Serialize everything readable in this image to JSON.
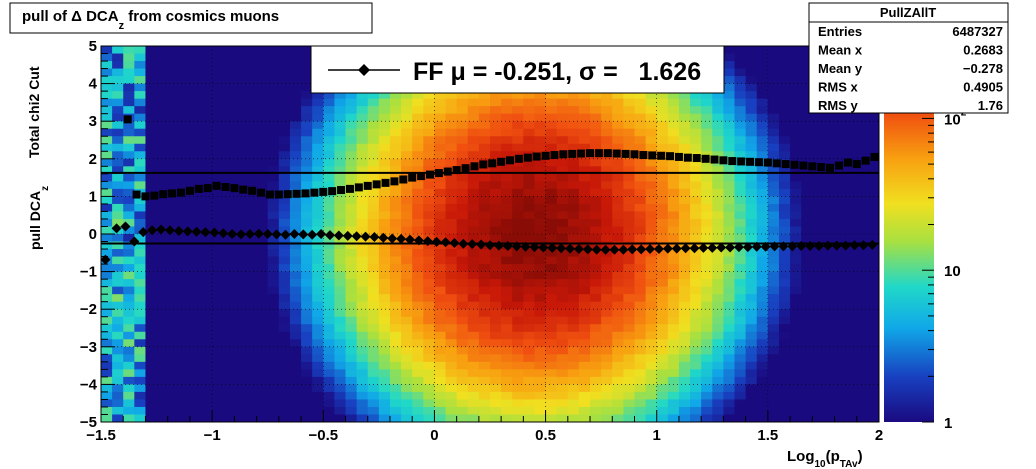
{
  "chart_data": {
    "type": "heatmap",
    "title": "pull of Δ DCA",
    "title_sub": "z",
    "title_tail": " from cosmics muons",
    "xlabel": "Log",
    "xlabel_sub1": "10",
    "xlabel_mid": "(p",
    "xlabel_sub2": "TAv",
    "xlabel_tail": ")",
    "ylabel_top": "Total chi2 Cut",
    "ylabel_bottom": "pull DCA",
    "ylabel_sub": "z",
    "xlim": [
      -1.5,
      2
    ],
    "ylim": [
      -5,
      5
    ],
    "x_ticks": [
      {
        "v": -1.5,
        "label": "−1.5"
      },
      {
        "v": -1,
        "label": "−1"
      },
      {
        "v": -0.5,
        "label": "−0.5"
      },
      {
        "v": 0,
        "label": "0"
      },
      {
        "v": 0.5,
        "label": "0.5"
      },
      {
        "v": 1,
        "label": "1"
      },
      {
        "v": 1.5,
        "label": "1.5"
      },
      {
        "v": 2,
        "label": "2"
      }
    ],
    "y_ticks": [
      {
        "v": 5,
        "label": "5"
      },
      {
        "v": 4,
        "label": "4"
      },
      {
        "v": 3,
        "label": "3"
      },
      {
        "v": 2,
        "label": "2"
      },
      {
        "v": 1,
        "label": "1"
      },
      {
        "v": 0,
        "label": "0"
      },
      {
        "v": -1,
        "label": "−1"
      },
      {
        "v": -2,
        "label": "−2"
      },
      {
        "v": -3,
        "label": "−3"
      },
      {
        "v": -4,
        "label": "−4"
      },
      {
        "v": -5,
        "label": "−5"
      }
    ],
    "grid": true,
    "z_scale": "log",
    "z_ticks": [
      {
        "v": 1,
        "label": "1",
        "exp": ""
      },
      {
        "v": 10,
        "label": "10",
        "exp": ""
      },
      {
        "v": 100,
        "label": "10",
        "exp": "2"
      }
    ],
    "z_range": [
      1,
      300
    ],
    "colors": {
      "low": "#1a0a80",
      "high": "#8a0c06"
    },
    "legend": {
      "label": "FF μ = -0.251, σ =   1.626",
      "position": "top-center"
    },
    "h_lines": [
      {
        "name": "mean",
        "y": -0.251
      },
      {
        "name": "sigma",
        "y": 1.626
      }
    ],
    "series": [
      {
        "marker": "diamond",
        "x": [
          -1.48,
          -1.43,
          -1.39,
          -1.35,
          -1.31,
          -1.27,
          -1.23,
          -1.19,
          -1.15,
          -1.11,
          -1.07,
          -1.03,
          -0.99,
          -0.95,
          -0.91,
          -0.87,
          -0.83,
          -0.79,
          -0.75,
          -0.71,
          -0.67,
          -0.63,
          -0.59,
          -0.55,
          -0.51,
          -0.47,
          -0.43,
          -0.39,
          -0.35,
          -0.31,
          -0.27,
          -0.23,
          -0.19,
          -0.15,
          -0.11,
          -0.07,
          -0.03,
          0.01,
          0.05,
          0.09,
          0.13,
          0.17,
          0.21,
          0.25,
          0.29,
          0.33,
          0.37,
          0.41,
          0.45,
          0.49,
          0.53,
          0.57,
          0.61,
          0.65,
          0.69,
          0.73,
          0.77,
          0.81,
          0.85,
          0.89,
          0.93,
          0.97,
          1.01,
          1.05,
          1.09,
          1.13,
          1.17,
          1.21,
          1.25,
          1.29,
          1.33,
          1.37,
          1.41,
          1.45,
          1.49,
          1.53,
          1.57,
          1.61,
          1.65,
          1.69,
          1.73,
          1.77,
          1.81,
          1.85,
          1.89,
          1.93,
          1.97
        ],
        "y": [
          -0.68,
          0.15,
          0.2,
          -0.2,
          0.05,
          0.1,
          0.12,
          0.1,
          0.08,
          0.07,
          0.06,
          0.05,
          0.04,
          0.02,
          0.0,
          -0.01,
          0.0,
          0.01,
          0.0,
          -0.01,
          -0.02,
          0.0,
          -0.01,
          -0.02,
          0.0,
          -0.03,
          -0.04,
          -0.05,
          -0.06,
          -0.07,
          -0.08,
          -0.1,
          -0.12,
          -0.13,
          -0.15,
          -0.17,
          -0.19,
          -0.21,
          -0.22,
          -0.24,
          -0.26,
          -0.27,
          -0.28,
          -0.3,
          -0.31,
          -0.32,
          -0.33,
          -0.34,
          -0.35,
          -0.36,
          -0.37,
          -0.38,
          -0.39,
          -0.4,
          -0.41,
          -0.42,
          -0.42,
          -0.42,
          -0.42,
          -0.41,
          -0.41,
          -0.4,
          -0.4,
          -0.39,
          -0.39,
          -0.38,
          -0.38,
          -0.37,
          -0.37,
          -0.36,
          -0.36,
          -0.35,
          -0.35,
          -0.34,
          -0.34,
          -0.33,
          -0.33,
          -0.33,
          -0.32,
          -0.32,
          -0.32,
          -0.31,
          -0.31,
          -0.31,
          -0.3,
          -0.3,
          -0.29
        ]
      },
      {
        "marker": "square",
        "x": [
          -1.38,
          -1.34,
          -1.3,
          -1.26,
          -1.22,
          -1.18,
          -1.14,
          -1.1,
          -1.06,
          -1.02,
          -0.98,
          -0.94,
          -0.9,
          -0.86,
          -0.82,
          -0.78,
          -0.74,
          -0.7,
          -0.66,
          -0.62,
          -0.58,
          -0.54,
          -0.5,
          -0.46,
          -0.42,
          -0.38,
          -0.34,
          -0.3,
          -0.26,
          -0.22,
          -0.18,
          -0.14,
          -0.1,
          -0.06,
          -0.02,
          0.02,
          0.06,
          0.1,
          0.14,
          0.18,
          0.22,
          0.26,
          0.3,
          0.34,
          0.38,
          0.42,
          0.46,
          0.5,
          0.54,
          0.58,
          0.62,
          0.66,
          0.7,
          0.74,
          0.78,
          0.82,
          0.86,
          0.9,
          0.94,
          0.98,
          1.02,
          1.06,
          1.1,
          1.14,
          1.18,
          1.22,
          1.26,
          1.3,
          1.34,
          1.38,
          1.42,
          1.46,
          1.5,
          1.54,
          1.58,
          1.62,
          1.66,
          1.7,
          1.74,
          1.78,
          1.82,
          1.86,
          1.9,
          1.94,
          1.98
        ],
        "y": [
          3.05,
          1.05,
          1.0,
          1.02,
          1.06,
          1.08,
          1.1,
          1.15,
          1.2,
          1.22,
          1.28,
          1.25,
          1.22,
          1.18,
          1.15,
          1.1,
          1.05,
          1.05,
          1.06,
          1.07,
          1.08,
          1.1,
          1.12,
          1.14,
          1.17,
          1.2,
          1.24,
          1.28,
          1.32,
          1.36,
          1.4,
          1.45,
          1.5,
          1.54,
          1.58,
          1.62,
          1.66,
          1.7,
          1.75,
          1.8,
          1.85,
          1.88,
          1.92,
          1.96,
          2.0,
          2.03,
          2.06,
          2.08,
          2.1,
          2.12,
          2.13,
          2.14,
          2.15,
          2.15,
          2.15,
          2.14,
          2.13,
          2.12,
          2.1,
          2.09,
          2.08,
          2.07,
          2.05,
          2.03,
          2.02,
          2.0,
          1.98,
          1.96,
          1.94,
          1.93,
          1.92,
          1.91,
          1.9,
          1.88,
          1.86,
          1.84,
          1.82,
          1.8,
          1.78,
          1.76,
          1.82,
          1.9,
          1.86,
          1.95,
          2.05
        ]
      }
    ]
  },
  "stats": {
    "title": "PullZAllT",
    "rows": [
      {
        "label": "Entries",
        "value": "6487327"
      },
      {
        "label": "Mean x",
        "value": "0.2683"
      },
      {
        "label": "Mean y",
        "value": "−0.278"
      },
      {
        "label": "RMS x",
        "value": "0.4905"
      },
      {
        "label": "RMS y",
        "value": "1.76"
      }
    ]
  }
}
